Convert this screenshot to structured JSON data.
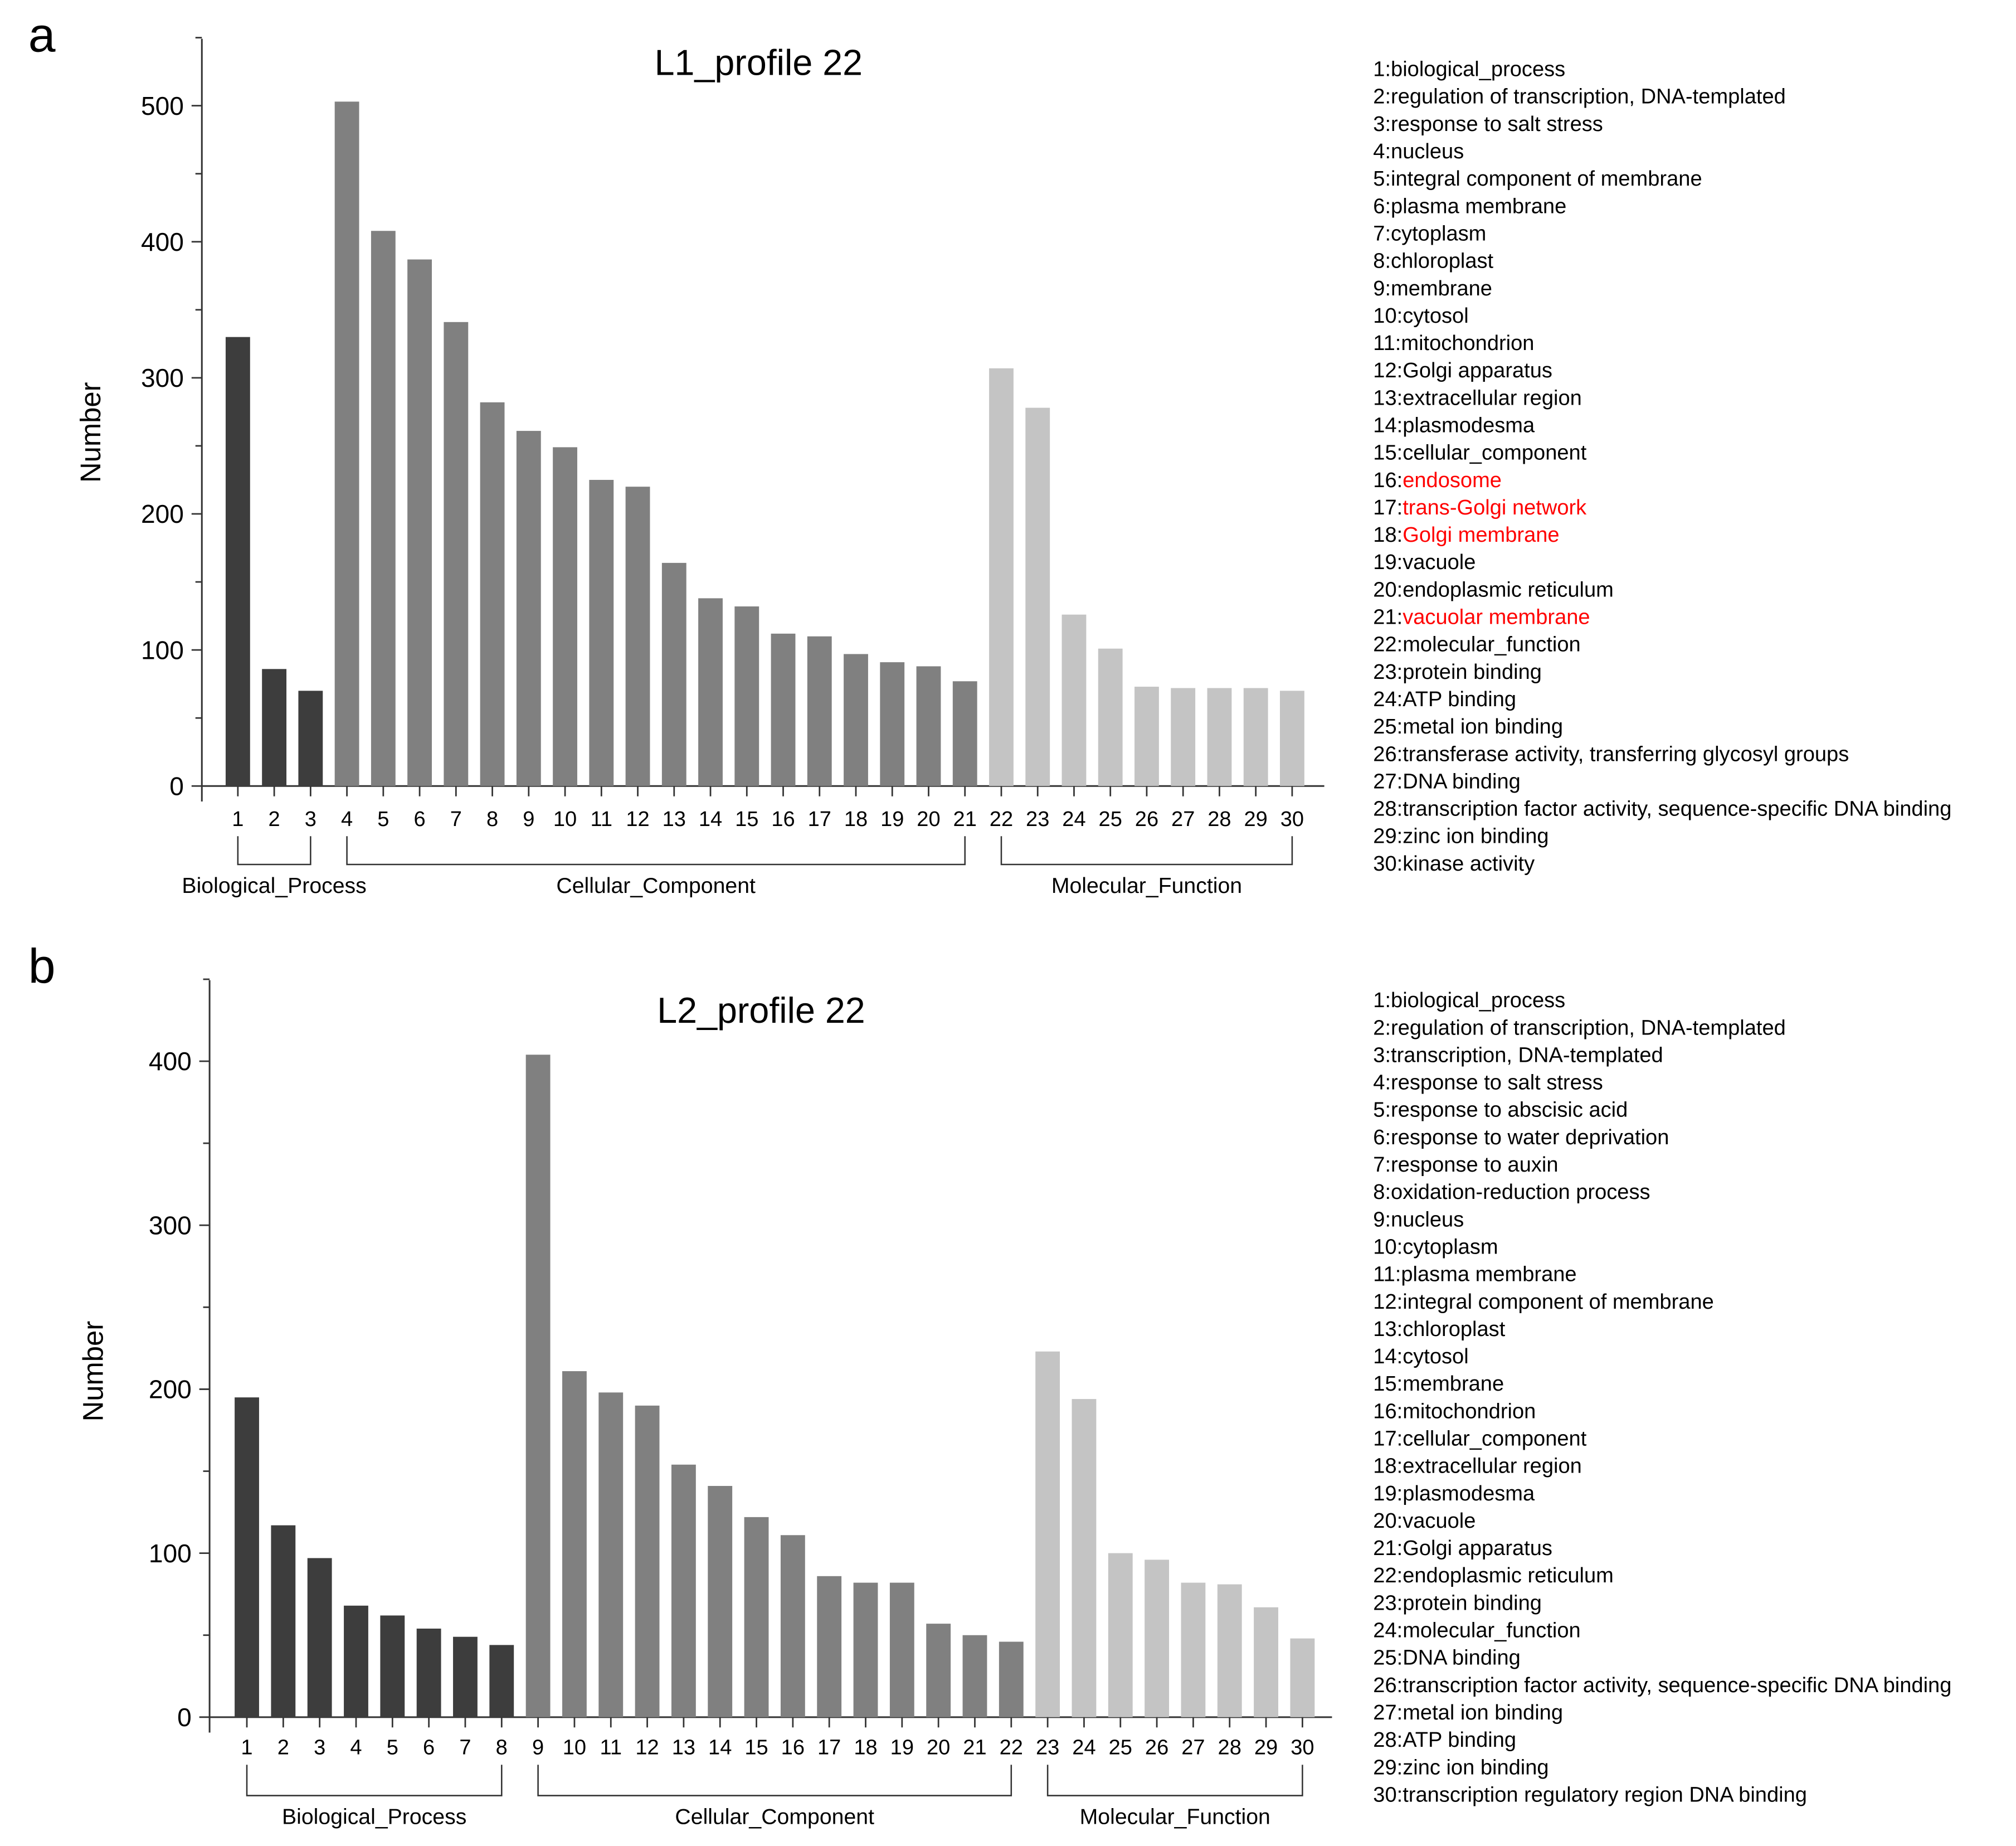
{
  "colors": {
    "Biological_Process": "#3d3d3d",
    "Cellular_Component": "#808080",
    "Molecular_Function": "#c4c4c4",
    "highlight": "#ff0000",
    "axis": "#333333"
  },
  "chart_data": [
    {
      "panel": "a",
      "type": "bar",
      "title": "L1_profile 22",
      "xlabel": "",
      "ylabel": "Number",
      "ylim": [
        0,
        550
      ],
      "yticks": [
        0,
        100,
        200,
        300,
        400,
        500
      ],
      "categories": [
        "1",
        "2",
        "3",
        "4",
        "5",
        "6",
        "7",
        "8",
        "9",
        "10",
        "11",
        "12",
        "13",
        "14",
        "15",
        "16",
        "17",
        "18",
        "19",
        "20",
        "21",
        "22",
        "23",
        "24",
        "25",
        "26",
        "27",
        "28",
        "29",
        "30"
      ],
      "values": [
        330,
        86,
        70,
        503,
        408,
        387,
        341,
        282,
        261,
        249,
        225,
        220,
        164,
        138,
        132,
        112,
        110,
        97,
        91,
        88,
        77,
        307,
        278,
        126,
        101,
        73,
        72,
        72,
        72,
        70
      ],
      "groups": [
        {
          "name": "Biological_Process",
          "start": 1,
          "end": 3
        },
        {
          "name": "Cellular_Component",
          "start": 4,
          "end": 21
        },
        {
          "name": "Molecular_Function",
          "start": 22,
          "end": 30
        }
      ],
      "legend": [
        {
          "num": "1:",
          "text": "biological_process"
        },
        {
          "num": "2:",
          "text": "regulation of transcription, DNA-templated"
        },
        {
          "num": "3:",
          "text": "response to salt stress"
        },
        {
          "num": "4:",
          "text": "nucleus"
        },
        {
          "num": "5:",
          "text": "integral component of membrane"
        },
        {
          "num": "6:",
          "text": "plasma membrane"
        },
        {
          "num": "7:",
          "text": "cytoplasm"
        },
        {
          "num": "8:",
          "text": "chloroplast"
        },
        {
          "num": "9:",
          "text": "membrane"
        },
        {
          "num": "10:",
          "text": "cytosol"
        },
        {
          "num": "11:",
          "text": "mitochondrion"
        },
        {
          "num": "12:",
          "text": "Golgi apparatus"
        },
        {
          "num": "13:",
          "text": "extracellular region"
        },
        {
          "num": "14:",
          "text": "plasmodesma"
        },
        {
          "num": "15:",
          "text": "cellular_component"
        },
        {
          "num": "16:",
          "text": "endosome",
          "highlight": true
        },
        {
          "num": "17:",
          "text": "trans-Golgi network",
          "highlight": true
        },
        {
          "num": "18:",
          "text": "Golgi membrane",
          "highlight": true
        },
        {
          "num": "19:",
          "text": "vacuole"
        },
        {
          "num": "20:",
          "text": "endoplasmic reticulum"
        },
        {
          "num": "21:",
          "text": "vacuolar membrane",
          "highlight": true
        },
        {
          "num": "22:",
          "text": "molecular_function"
        },
        {
          "num": "23:",
          "text": "protein binding"
        },
        {
          "num": "24:",
          "text": "ATP binding"
        },
        {
          "num": "25:",
          "text": "metal ion binding"
        },
        {
          "num": "26:",
          "text": "transferase activity, transferring glycosyl groups"
        },
        {
          "num": "27:",
          "text": "DNA binding"
        },
        {
          "num": "28:",
          "text": "transcription factor activity, sequence-specific DNA binding"
        },
        {
          "num": "29:",
          "text": "zinc ion binding"
        },
        {
          "num": "30:",
          "text": "kinase activity"
        }
      ]
    },
    {
      "panel": "b",
      "type": "bar",
      "title": "L2_profile 22",
      "xlabel": "",
      "ylabel": "Number",
      "ylim": [
        0,
        450
      ],
      "yticks": [
        0,
        100,
        200,
        300,
        400
      ],
      "categories": [
        "1",
        "2",
        "3",
        "4",
        "5",
        "6",
        "7",
        "8",
        "9",
        "10",
        "11",
        "12",
        "13",
        "14",
        "15",
        "16",
        "17",
        "18",
        "19",
        "20",
        "21",
        "22",
        "23",
        "24",
        "25",
        "26",
        "27",
        "28",
        "29",
        "30"
      ],
      "values": [
        195,
        117,
        97,
        68,
        62,
        54,
        49,
        44,
        404,
        211,
        198,
        190,
        154,
        141,
        122,
        111,
        86,
        82,
        82,
        57,
        50,
        46,
        223,
        194,
        100,
        96,
        82,
        81,
        67,
        48
      ],
      "groups": [
        {
          "name": "Biological_Process",
          "start": 1,
          "end": 8
        },
        {
          "name": "Cellular_Component",
          "start": 9,
          "end": 22
        },
        {
          "name": "Molecular_Function",
          "start": 23,
          "end": 30
        }
      ],
      "legend": [
        {
          "num": "1:",
          "text": "biological_process"
        },
        {
          "num": "2:",
          "text": "regulation of transcription, DNA-templated"
        },
        {
          "num": "3:",
          "text": "transcription, DNA-templated"
        },
        {
          "num": "4:",
          "text": "response to salt stress"
        },
        {
          "num": "5:",
          "text": "response to abscisic acid"
        },
        {
          "num": "6:",
          "text": "response to water deprivation"
        },
        {
          "num": "7:",
          "text": "response to auxin"
        },
        {
          "num": "8:",
          "text": "oxidation-reduction process"
        },
        {
          "num": "9:",
          "text": "nucleus"
        },
        {
          "num": "10:",
          "text": "cytoplasm"
        },
        {
          "num": "11:",
          "text": "plasma membrane"
        },
        {
          "num": "12:",
          "text": "integral component of membrane"
        },
        {
          "num": "13:",
          "text": "chloroplast"
        },
        {
          "num": "14:",
          "text": "cytosol"
        },
        {
          "num": "15:",
          "text": "membrane"
        },
        {
          "num": "16:",
          "text": "mitochondrion"
        },
        {
          "num": "17:",
          "text": "cellular_component"
        },
        {
          "num": "18:",
          "text": "extracellular region"
        },
        {
          "num": "19:",
          "text": "plasmodesma"
        },
        {
          "num": "20:",
          "text": "vacuole"
        },
        {
          "num": "21:",
          "text": "Golgi apparatus"
        },
        {
          "num": "22:",
          "text": "endoplasmic reticulum"
        },
        {
          "num": "23:",
          "text": "protein binding"
        },
        {
          "num": "24:",
          "text": "molecular_function"
        },
        {
          "num": "25:",
          "text": "DNA binding"
        },
        {
          "num": "26:",
          "text": "transcription factor activity, sequence-specific DNA binding"
        },
        {
          "num": "27:",
          "text": "metal ion binding"
        },
        {
          "num": "28:",
          "text": "ATP binding"
        },
        {
          "num": "29:",
          "text": "zinc ion binding"
        },
        {
          "num": "30:",
          "text": "transcription regulatory region DNA binding"
        }
      ]
    }
  ]
}
